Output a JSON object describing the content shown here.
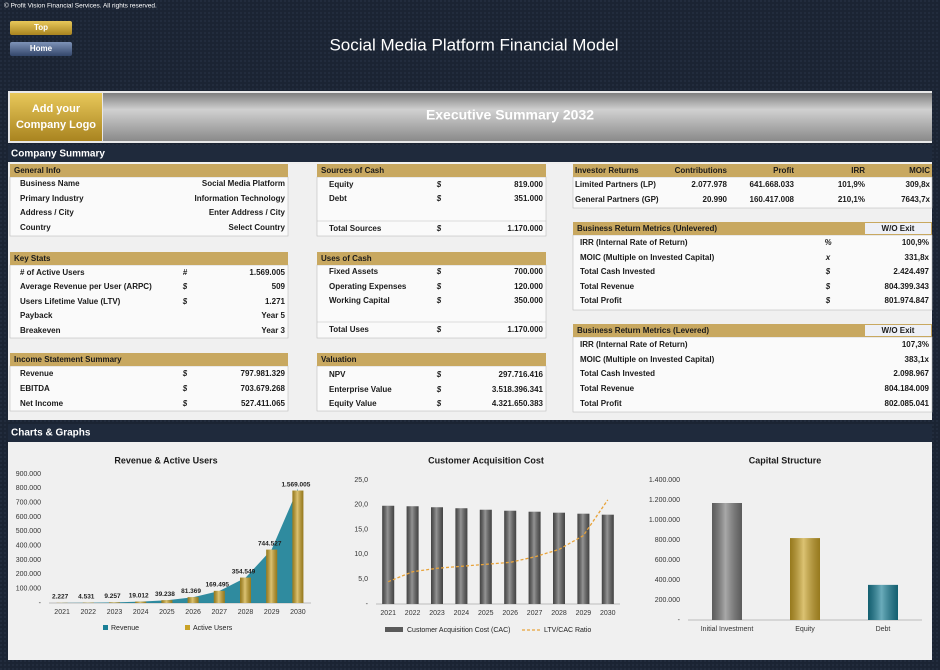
{
  "header": {
    "copyright": "© Profit Vision Financial Services. All rights reserved.",
    "buttons": [
      "Top",
      "Home"
    ],
    "title": "Social Media Platform Financial Model"
  },
  "banner": {
    "logo": [
      "Add your",
      "Company Logo"
    ],
    "title": "Executive Summary 2032"
  },
  "company_summary": {
    "title": "Company Summary",
    "sections": [
      {
        "title": "General Info",
        "rows": [
          [
            "Business Name",
            "Social Media Platform"
          ],
          [
            "Primary Industry",
            "Information Technology"
          ],
          [
            "Address / City",
            "Enter Address / City"
          ],
          [
            "Country",
            "Select Country"
          ]
        ]
      },
      {
        "title": "Key Stats",
        "rows": [
          [
            "# of Active Users",
            "#",
            "1.569.005"
          ],
          [
            "Average Revenue per User (ARPC)",
            "$",
            "509"
          ],
          [
            "Users Lifetime Value (LTV)",
            "$",
            "1.271"
          ],
          [
            "Payback",
            "Year 5"
          ],
          [
            "Breakeven",
            "Year 3"
          ]
        ]
      },
      {
        "title": "Income Statement Summary",
        "rows": [
          [
            "Revenue",
            "$",
            "797.981.329"
          ],
          [
            "EBITDA",
            "$",
            "703.679.268"
          ],
          [
            "Net Income",
            "$",
            "527.411.065"
          ]
        ]
      },
      {
        "title": "Sources of Cash",
        "rows": [
          [
            "Equity",
            "$",
            "819.000"
          ],
          [
            "Debt",
            "$",
            "351.000"
          ],
          [
            "Total Sources",
            "$",
            "1.170.000"
          ]
        ]
      },
      {
        "title": "Uses of Cash",
        "rows": [
          [
            "Fixed Assets",
            "$",
            "700.000"
          ],
          [
            "Operating Expenses",
            "$",
            "120.000"
          ],
          [
            "Working Capital",
            "$",
            "350.000"
          ],
          [
            "Total Uses",
            "$",
            "1.170.000"
          ]
        ]
      },
      {
        "title": "Valuation",
        "rows": [
          [
            "NPV",
            "$",
            "297.716.416"
          ],
          [
            "Enterprise Value",
            "$",
            "3.518.396.341"
          ],
          [
            "Equity Value",
            "$",
            "4.321.650.383"
          ]
        ]
      },
      {
        "columns": [
          "Investor Returns",
          "Contributions",
          "Profit",
          "IRR",
          "MOIC"
        ],
        "rows": [
          [
            "Limited Partners (LP)",
            "2.077.978",
            "641.668.033",
            "101,9%",
            "309,8x"
          ],
          [
            "General Partners (GP)",
            "20.990",
            "160.417.008",
            "210,1%",
            "7643,7x"
          ]
        ]
      },
      {
        "title": "Business Return Metrics (Unlevered)",
        "tag": "W/O Exit",
        "rows": [
          [
            "IRR (Internal Rate of Return)",
            "%",
            "100,9%"
          ],
          [
            "MOIC (Multiple on Invested Capital)",
            "x",
            "331,8x"
          ],
          [
            "Total Cash Invested",
            "$",
            "2.424.497"
          ],
          [
            "Total Revenue",
            "$",
            "804.399.343"
          ],
          [
            "Total Profit",
            "$",
            "801.974.847"
          ]
        ]
      },
      {
        "title": "Business Return Metrics (Levered)",
        "tag": "W/O Exit",
        "rows": [
          [
            "IRR (Internal Rate of Return)",
            "107,3%"
          ],
          [
            "MOIC (Multiple on Invested Capital)",
            "383,1x"
          ],
          [
            "Total Cash Invested",
            "2.098.967"
          ],
          [
            "Total Revenue",
            "804.184.009"
          ],
          [
            "Total Profit",
            "802.085.041"
          ]
        ]
      }
    ]
  },
  "charts_section": {
    "title": "Charts & Graphs"
  },
  "chart_data": [
    {
      "type": "bar",
      "title": "Revenue & Active Users",
      "categories": [
        "2021",
        "2022",
        "2023",
        "2024",
        "2025",
        "2026",
        "2027",
        "2028",
        "2029",
        "2030"
      ],
      "series": [
        {
          "name": "Revenue",
          "type": "area",
          "color": "#1a7f96",
          "values": [
            1000,
            2100,
            4500,
            9500,
            19000,
            40000,
            84000,
            176000,
            374000,
            797981
          ]
        },
        {
          "name": "Active Users",
          "type": "bar",
          "axis": "y2",
          "color": "#c9a227",
          "values": [
            2227,
            4531,
            9257,
            19012,
            39238,
            81369,
            169495,
            354549,
            744527,
            1569005
          ],
          "value_labels": [
            "2.227",
            "4.531",
            "9.257",
            "19.012",
            "39.238",
            "81.369",
            "169.495",
            "354.549",
            "744.527",
            "1.569.005"
          ]
        }
      ],
      "ylim": [
        0,
        900000
      ],
      "yticks": [
        {
          "value": 0,
          "label": "-"
        },
        {
          "value": 100000,
          "label": "100.000"
        },
        {
          "value": 200000,
          "label": "200.000"
        },
        {
          "value": 300000,
          "label": "300.000"
        },
        {
          "value": 400000,
          "label": "400.000"
        },
        {
          "value": 500000,
          "label": "500.000"
        },
        {
          "value": 600000,
          "label": "600.000"
        },
        {
          "value": 700000,
          "label": "700.000"
        },
        {
          "value": 800000,
          "label": "800.000"
        },
        {
          "value": 900000,
          "label": "900.000"
        }
      ],
      "y2lim": [
        0,
        1800000
      ]
    },
    {
      "type": "bar",
      "title": "Customer Acquisition Cost",
      "categories": [
        "2021",
        "2022",
        "2023",
        "2024",
        "2025",
        "2026",
        "2027",
        "2028",
        "2029",
        "2030"
      ],
      "series": [
        {
          "name": "Customer Acquisition Cost (CAC)",
          "type": "bar",
          "color": "#5a5a5a",
          "values": [
            19.8,
            19.7,
            19.5,
            19.3,
            19.0,
            18.8,
            18.6,
            18.4,
            18.2,
            18.0
          ]
        },
        {
          "name": "LTV/CAC Ratio",
          "type": "line",
          "color": "#e8a33a",
          "values": [
            4.5,
            6.5,
            7.2,
            7.6,
            8.0,
            8.4,
            9.5,
            11.0,
            13.8,
            21.0
          ]
        }
      ],
      "ylim": [
        0,
        25
      ],
      "yticks": [
        {
          "value": 0,
          "label": "-"
        },
        {
          "value": 5,
          "label": "5,0"
        },
        {
          "value": 10,
          "label": "10,0"
        },
        {
          "value": 15,
          "label": "15,0"
        },
        {
          "value": 20,
          "label": "20,0"
        },
        {
          "value": 25,
          "label": "25,0"
        }
      ]
    },
    {
      "type": "bar",
      "title": "Capital Structure",
      "categories": [
        "Initial Investment",
        "Equity",
        "Debt"
      ],
      "values": [
        1170000,
        819000,
        351000
      ],
      "colors": [
        "#7a7a7a",
        "#c9a227",
        "#1a7f96"
      ],
      "ylim": [
        0,
        1400000
      ],
      "yticks": [
        {
          "value": 0,
          "label": "-"
        },
        {
          "value": 200000,
          "label": "200.000"
        },
        {
          "value": 400000,
          "label": "400.000"
        },
        {
          "value": 600000,
          "label": "600.000"
        },
        {
          "value": 800000,
          "label": "800.000"
        },
        {
          "value": 1000000,
          "label": "1.000.000"
        },
        {
          "value": 1200000,
          "label": "1.200.000"
        },
        {
          "value": 1400000,
          "label": "1.400.000"
        }
      ]
    }
  ]
}
